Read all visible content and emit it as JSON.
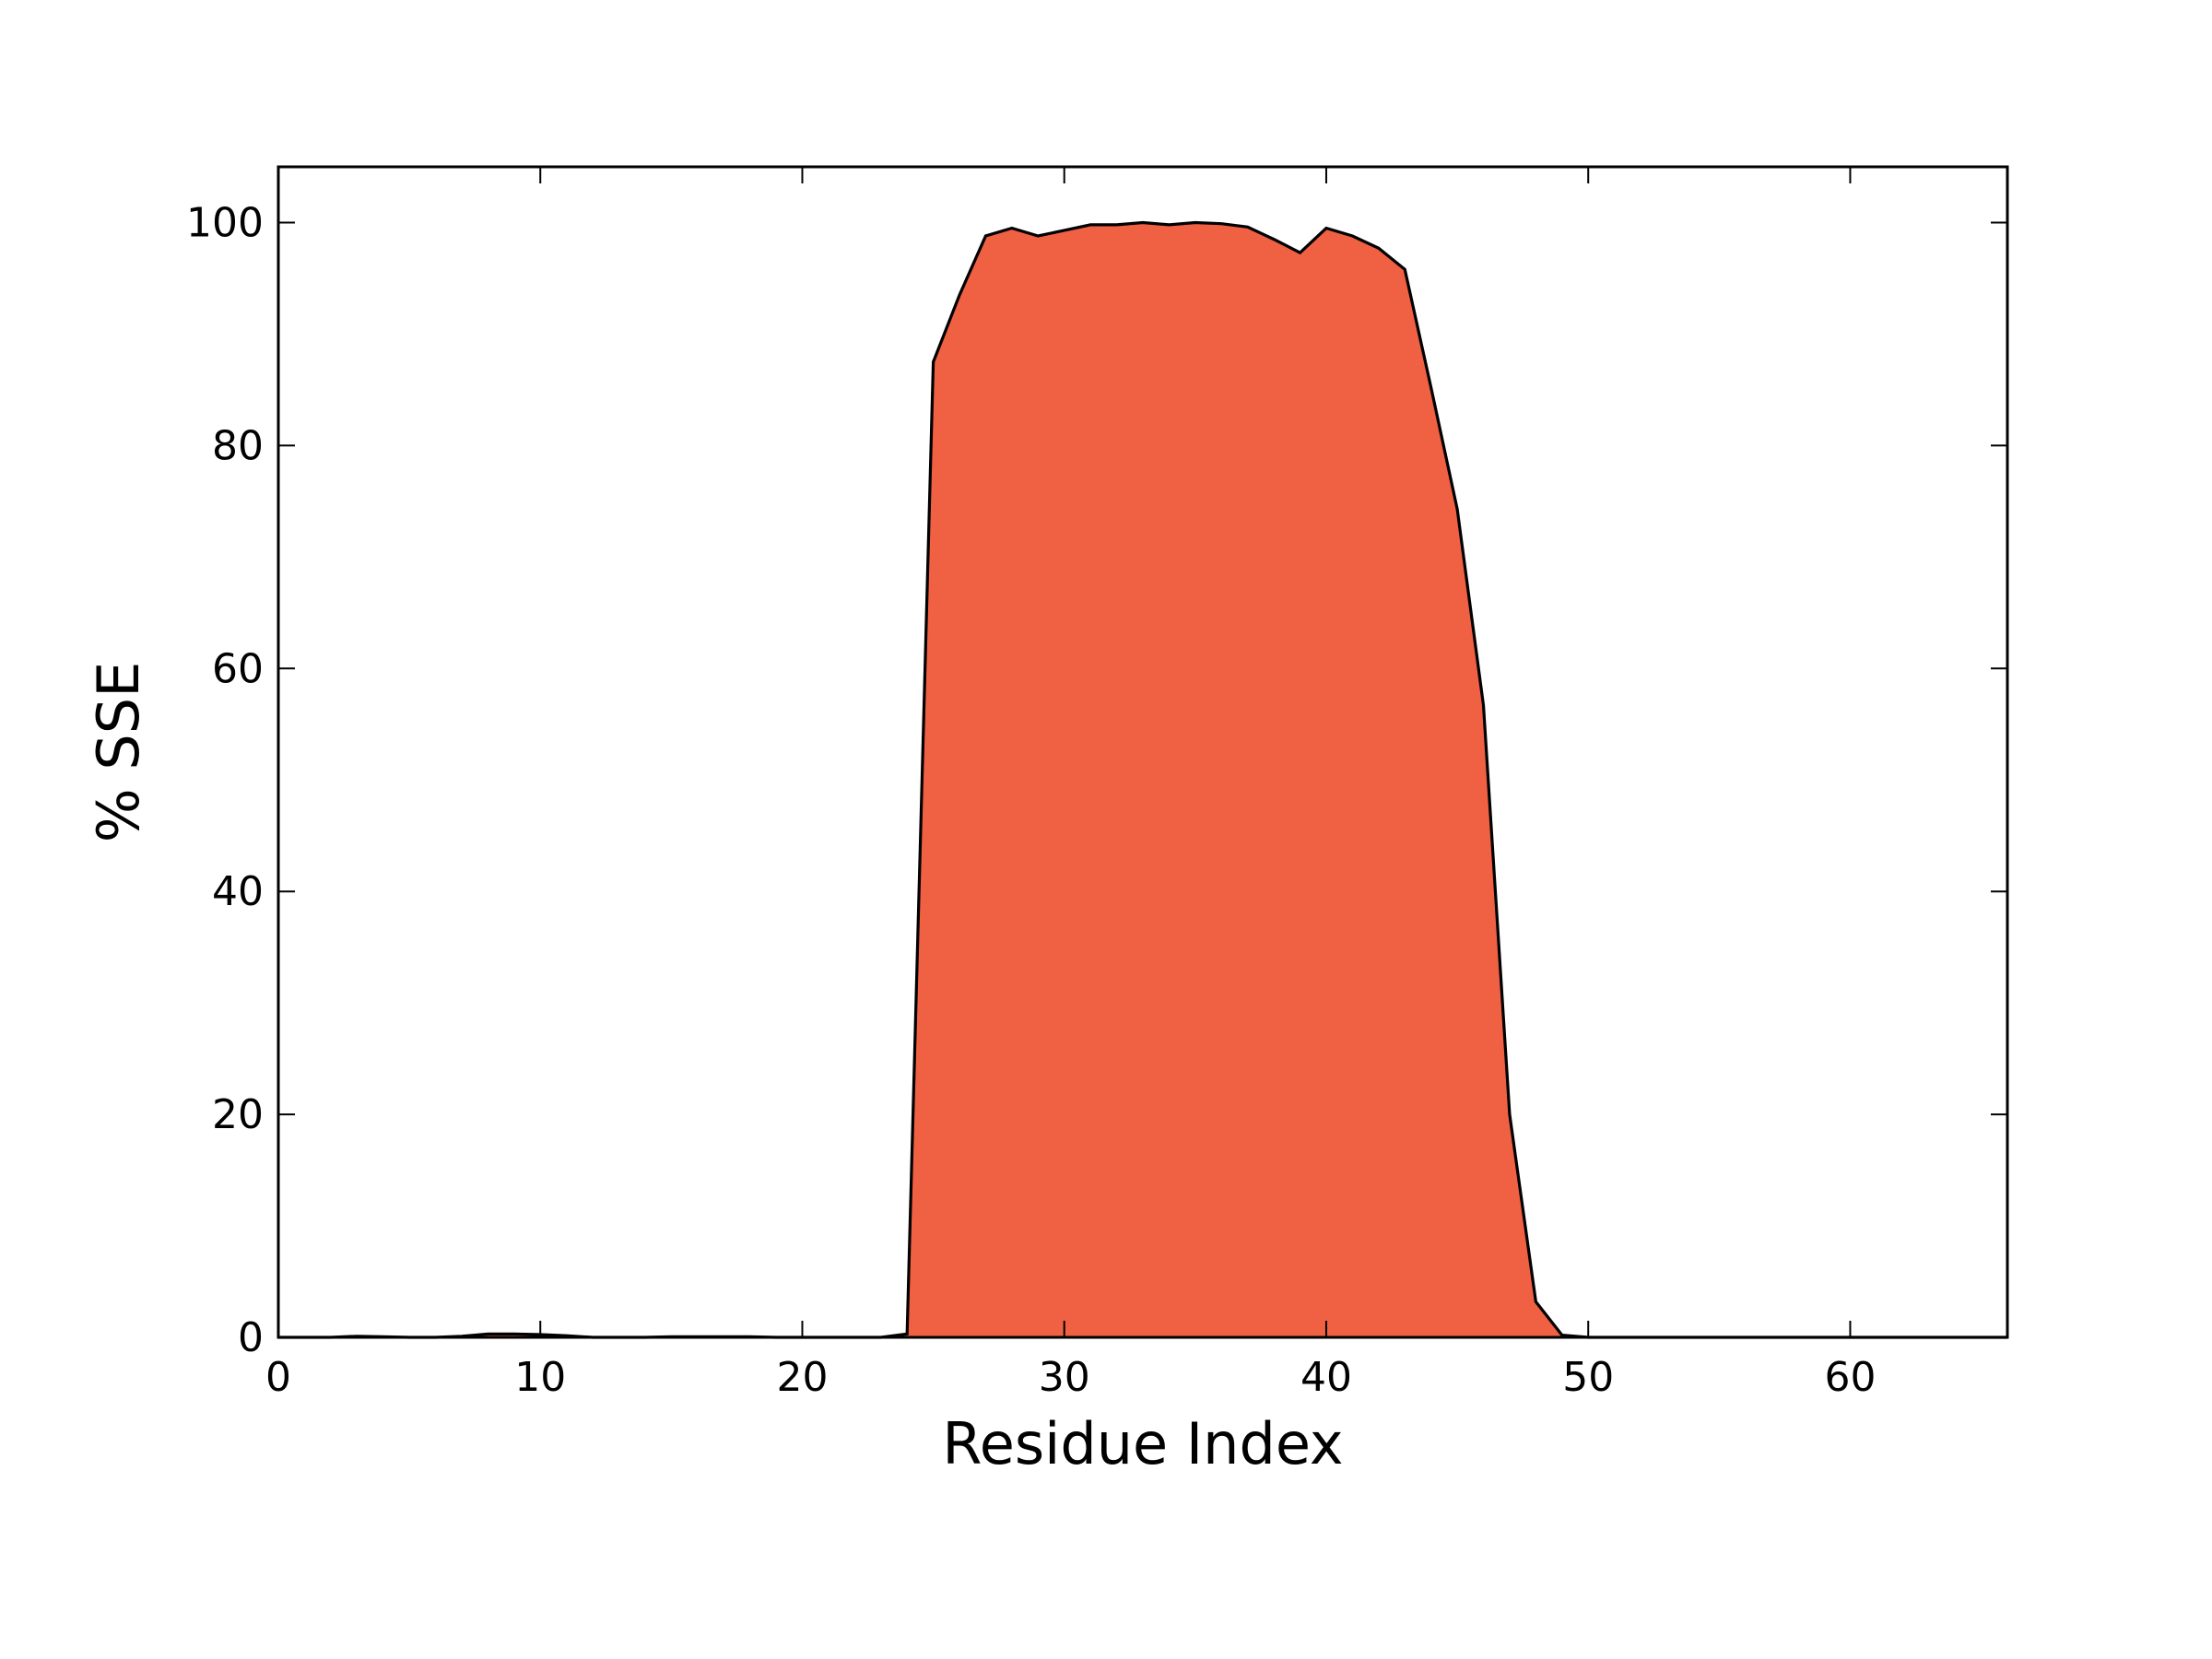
{
  "chart_data": {
    "type": "area",
    "title": "",
    "xlabel": "Residue Index",
    "ylabel": "% SSE",
    "xlim": [
      0,
      66
    ],
    "ylim": [
      0,
      105
    ],
    "xticks": [
      0,
      10,
      20,
      30,
      40,
      50,
      60
    ],
    "yticks": [
      0,
      20,
      40,
      60,
      80,
      100
    ],
    "grid": false,
    "legend": "none",
    "colors": {
      "fill": "#f06043",
      "line": "#000000",
      "axes": "#000000",
      "background": "#ffffff"
    },
    "x": [
      0,
      1,
      2,
      3,
      4,
      5,
      6,
      7,
      8,
      9,
      10,
      11,
      12,
      13,
      14,
      15,
      16,
      17,
      18,
      19,
      20,
      21,
      22,
      23,
      24,
      25,
      26,
      27,
      28,
      29,
      30,
      31,
      32,
      33,
      34,
      35,
      36,
      37,
      38,
      39,
      40,
      41,
      42,
      43,
      44,
      45,
      46,
      47,
      48,
      49,
      50,
      51,
      52,
      53,
      54,
      55,
      55,
      56,
      57,
      58,
      59,
      60,
      61,
      62,
      63,
      64,
      65,
      66
    ],
    "series": [
      {
        "values": [
          0,
          0,
          0,
          0.1,
          0.05,
          0,
          0,
          0.1,
          0.3,
          0.3,
          0.25,
          0.15,
          0,
          0,
          0,
          0.05,
          0.05,
          0.05,
          0.05,
          0,
          0,
          0,
          0,
          0,
          0.3,
          87.5,
          93.5,
          98.8,
          99.5,
          98.8,
          99.3,
          99.8,
          99.8,
          100,
          99.8,
          100,
          99.9,
          99.6,
          98.5,
          97.3,
          99.5,
          98.8,
          97.7,
          95.8,
          85.2,
          74.3,
          56.7,
          20,
          3.2,
          0.2,
          0,
          0,
          0,
          0,
          0,
          0,
          0,
          0,
          0,
          0,
          0,
          0,
          0,
          0,
          0,
          0,
          0,
          0
        ]
      }
    ]
  }
}
